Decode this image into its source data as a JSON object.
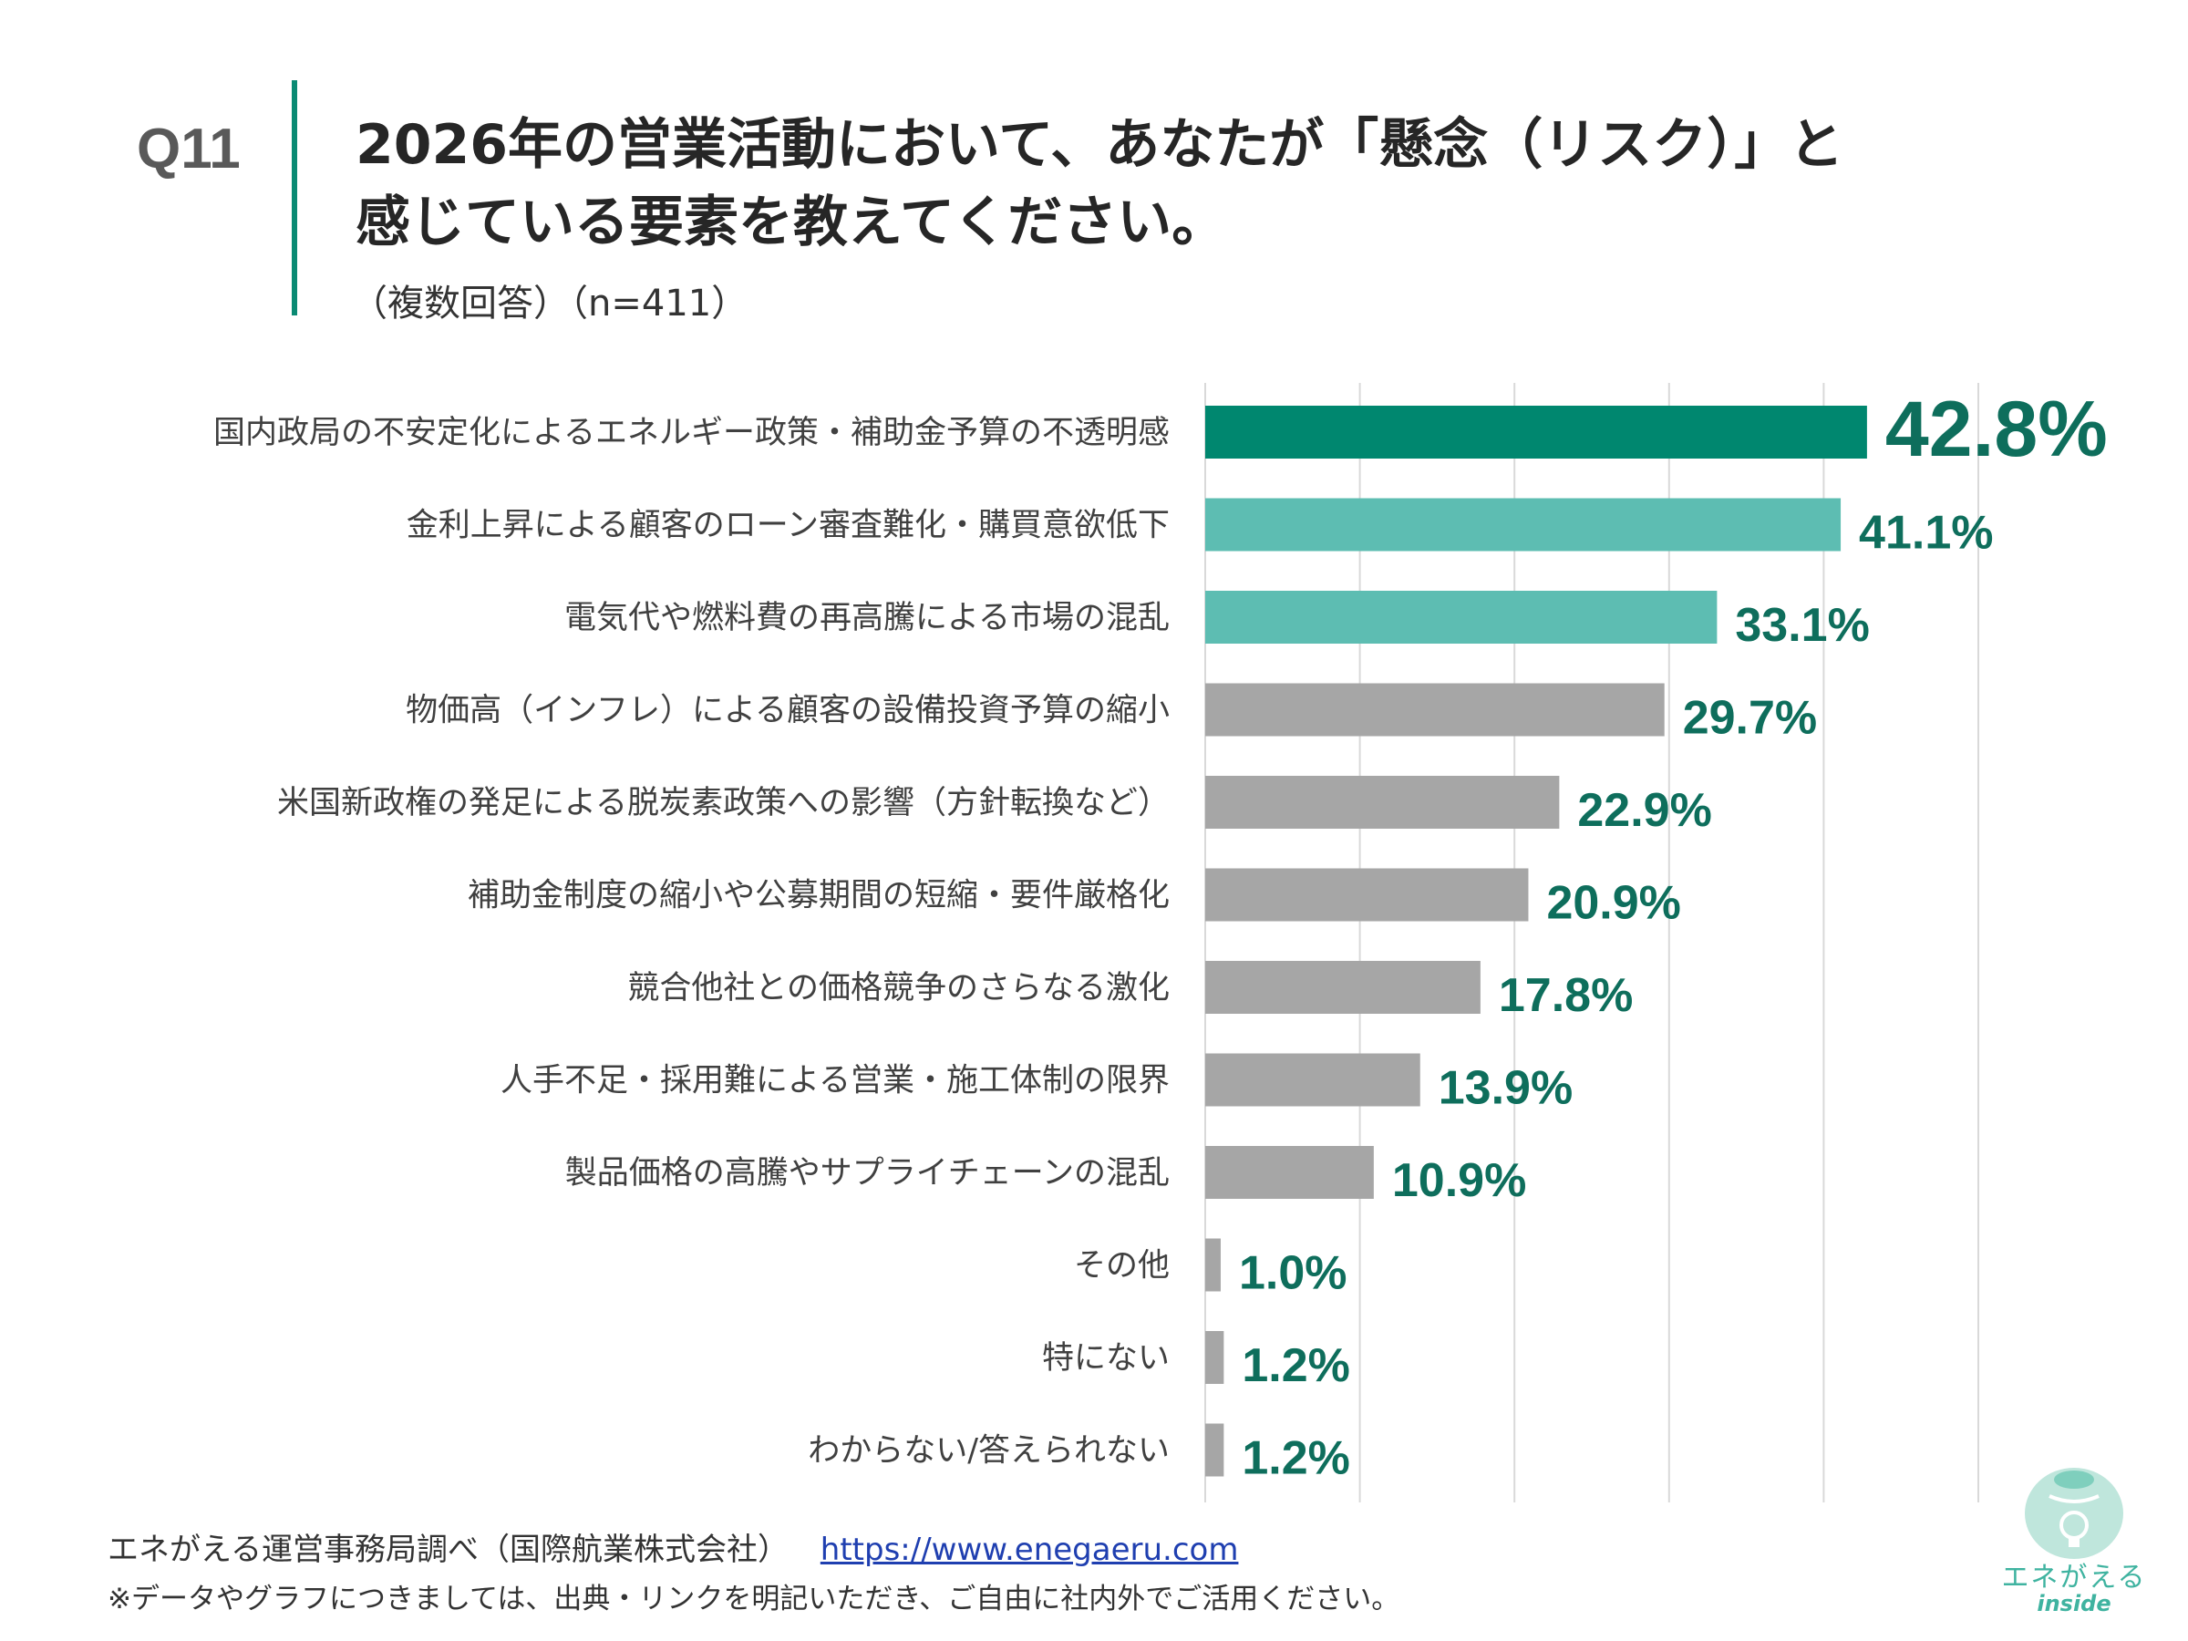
{
  "header": {
    "question_number": "Q11",
    "title_line1": "2026年の営業活動において、あなたが「懸念（リスク）」と",
    "title_line2": "感じている要素を教えてください。",
    "subtitle": "（複数回答）（n=411）"
  },
  "colors": {
    "accent_dark": "#00876f",
    "accent_light": "#5dbdb2",
    "neutral": "#a6a6a6",
    "value_text": "#0e6e5c",
    "grid": "#d9d9d9"
  },
  "chart_data": {
    "type": "bar",
    "orientation": "horizontal",
    "xlim": [
      0,
      50
    ],
    "grid": true,
    "categories": [
      "国内政局の不安定化によるエネルギー政策・補助金予算の不透明感",
      "金利上昇による顧客のローン審査難化・購買意欲低下",
      "電気代や燃料費の再高騰による市場の混乱",
      "物価高（インフレ）による顧客の設備投資予算の縮小",
      "米国新政権の発足による脱炭素政策への影響（方針転換など）",
      "補助金制度の縮小や公募期間の短縮・要件厳格化",
      "競合他社との価格競争のさらなる激化",
      "人手不足・採用難による営業・施工体制の限界",
      "製品価格の高騰やサプライチェーンの混乱",
      "その他",
      "特にない",
      "わからない/答えられない"
    ],
    "values": [
      42.8,
      41.1,
      33.1,
      29.7,
      22.9,
      20.9,
      17.8,
      13.9,
      10.9,
      1.0,
      1.2,
      1.2
    ],
    "value_labels": [
      "42.8%",
      "41.1%",
      "33.1%",
      "29.7%",
      "22.9%",
      "20.9%",
      "17.8%",
      "13.9%",
      "10.9%",
      "1.0%",
      "1.2%",
      "1.2%"
    ],
    "bar_color_keys": [
      "accent_dark",
      "accent_light",
      "accent_light",
      "neutral",
      "neutral",
      "neutral",
      "neutral",
      "neutral",
      "neutral",
      "neutral",
      "neutral",
      "neutral"
    ]
  },
  "footer": {
    "source": "エネがえる運営事務局調べ（国際航業株式会社）",
    "source_link": "https://www.enegaeru.com",
    "note": "※データやグラフにつきましては、出典・リンクを明記いただき、ご自由に社内外でご活用ください。"
  },
  "logo": {
    "name": "エネがえる",
    "sub": "inside"
  }
}
